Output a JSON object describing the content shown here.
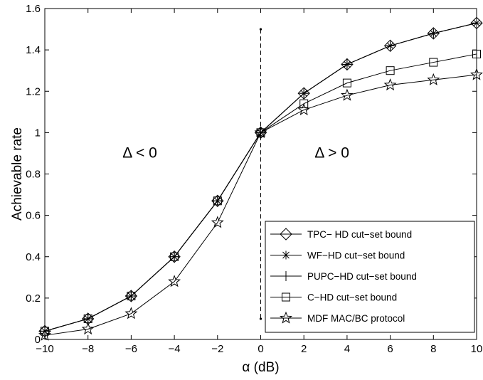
{
  "chart_data": {
    "type": "line",
    "title": "",
    "xlabel": "α (dB)",
    "ylabel": "Achievable rate",
    "xlim": [
      -10,
      10
    ],
    "ylim": [
      0,
      1.6
    ],
    "xticks": [
      -10,
      -8,
      -6,
      -4,
      -2,
      0,
      2,
      4,
      6,
      8,
      10
    ],
    "yticks": [
      0,
      0.2,
      0.4,
      0.6,
      0.8,
      1,
      1.2,
      1.4,
      1.6
    ],
    "xtick_labels": [
      "−10",
      "−8",
      "−6",
      "−4",
      "−2",
      "0",
      "2",
      "4",
      "6",
      "8",
      "10"
    ],
    "ytick_labels": [
      "0",
      "0.2",
      "0.4",
      "0.6",
      "0.8",
      "1",
      "1.2",
      "1.4",
      "1.6"
    ],
    "grid": false,
    "legend_position": "bottom-right",
    "x": [
      -10,
      -8,
      -6,
      -4,
      -2,
      0,
      2,
      4,
      6,
      8,
      10
    ],
    "series": [
      {
        "name": "TPC− HD cut−set bound",
        "marker": "diamond",
        "values": [
          0.04,
          0.1,
          0.21,
          0.4,
          0.67,
          1.0,
          1.19,
          1.33,
          1.42,
          1.48,
          1.53
        ]
      },
      {
        "name": "WF−HD cut−set bound",
        "marker": "asterisk",
        "values": [
          0.04,
          0.1,
          0.21,
          0.4,
          0.67,
          1.0,
          1.19,
          1.33,
          1.42,
          1.48,
          1.53
        ]
      },
      {
        "name": "PUPC−HD cut−set bound",
        "marker": "plus",
        "values": [
          0.04,
          0.1,
          0.21,
          0.4,
          0.67,
          1.0,
          1.19,
          1.33,
          1.42,
          1.48,
          1.53
        ]
      },
      {
        "name": "C−HD cut−set bound",
        "marker": "square",
        "values": [
          0.04,
          0.1,
          0.21,
          0.4,
          0.67,
          1.0,
          1.14,
          1.24,
          1.3,
          1.34,
          1.38
        ]
      },
      {
        "name": "MDF  MAC/BC protocol",
        "marker": "star",
        "values": [
          0.02,
          0.05,
          0.125,
          0.28,
          0.565,
          1.0,
          1.11,
          1.18,
          1.23,
          1.255,
          1.28
        ]
      }
    ],
    "divider": {
      "x": 0,
      "y_range": [
        0.1,
        1.5
      ],
      "style": "dashed"
    },
    "annotations": [
      {
        "text": "Δ < 0",
        "x": -5.6,
        "y": 0.88
      },
      {
        "text": "Δ > 0",
        "x": 3.3,
        "y": 0.88
      }
    ]
  }
}
